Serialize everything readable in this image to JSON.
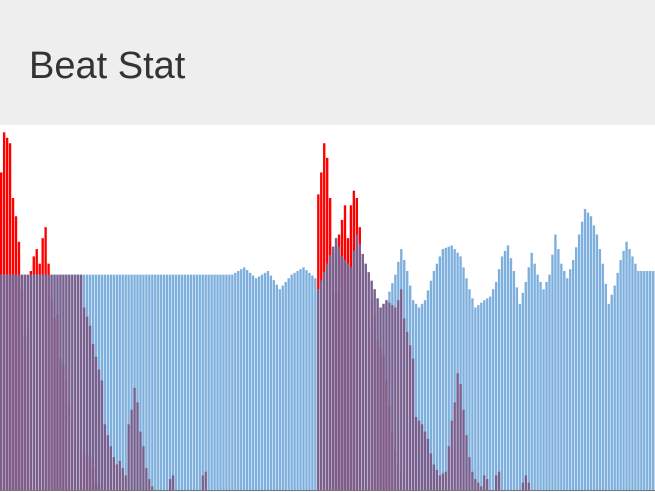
{
  "app": {
    "title": "Beat Stat"
  },
  "colors": {
    "header_background": "#eeeeee",
    "title_text": "#333333",
    "beat_series": "#ff0000",
    "stat_series": "#5b9bd5",
    "overlap": "#7a5f8c",
    "background": "#ffffff"
  },
  "chart_data": {
    "type": "bar",
    "xlabel": "",
    "ylabel": "",
    "ylim": [
      0,
      1
    ],
    "grid": false,
    "legend": "none",
    "series": [
      {
        "key": "beat",
        "color": "#ff0000",
        "opacity": 1,
        "segments": [
          {
            "start": 0,
            "points": [
              [
                0,
                0.87
              ],
              [
                1,
                0.98
              ],
              [
                3,
                0.95
              ],
              [
                4,
                0.8
              ],
              [
                5,
                0.75
              ],
              [
                6,
                0.68
              ],
              [
                8,
                0.42
              ],
              [
                9,
                0.44
              ],
              [
                10,
                0.6
              ],
              [
                11,
                0.64
              ],
              [
                12,
                0.66
              ],
              [
                13,
                0.62
              ],
              [
                14,
                0.69
              ],
              [
                15,
                0.72
              ],
              [
                16,
                0.62
              ],
              [
                17,
                0.52
              ],
              [
                18,
                0.47
              ],
              [
                19,
                0.48
              ],
              [
                20,
                0.36
              ],
              [
                21,
                0.34
              ],
              [
                22,
                0.3
              ],
              [
                23,
                0.24
              ],
              [
                24,
                0.19
              ],
              [
                25,
                0.15
              ],
              [
                27,
                0.1
              ],
              [
                28,
                0.09
              ],
              [
                29,
                0.1
              ],
              [
                30,
                0.09
              ],
              [
                31,
                0.06
              ],
              [
                32,
                0.02
              ],
              [
                33,
                0.01
              ]
            ],
            "end": 33
          },
          {
            "start": 34,
            "points": [
              [
                34,
                0
              ]
            ],
            "end": 106
          },
          {
            "start": 107,
            "points": [
              [
                107,
                0.81
              ],
              [
                108,
                0.87
              ],
              [
                109,
                0.95
              ],
              [
                110,
                0.91
              ],
              [
                111,
                0.8
              ],
              [
                112,
                0.65
              ],
              [
                113,
                0.54
              ],
              [
                114,
                0.7
              ],
              [
                115,
                0.74
              ],
              [
                116,
                0.78
              ],
              [
                117,
                0.69
              ],
              [
                118,
                0.78
              ],
              [
                119,
                0.82
              ],
              [
                120,
                0.8
              ],
              [
                121,
                0.72
              ],
              [
                122,
                0.56
              ],
              [
                123,
                0.47
              ],
              [
                124,
                0.45
              ],
              [
                125,
                0.52
              ],
              [
                126,
                0.48
              ],
              [
                127,
                0.41
              ],
              [
                128,
                0.39
              ],
              [
                129,
                0.37
              ],
              [
                130,
                0.3
              ],
              [
                131,
                0.23
              ],
              [
                132,
                0.16
              ],
              [
                133,
                0.11
              ],
              [
                134,
                0.07
              ],
              [
                135,
                0.05
              ]
            ],
            "end": 135
          },
          {
            "start": 136,
            "points": [
              [
                136,
                0
              ]
            ],
            "end": 220
          }
        ]
      },
      {
        "key": "stat",
        "color": "#5b9bd5",
        "opacity": 0.8,
        "segments": [
          {
            "start": 0,
            "points": [
              [
                0,
                0.59
              ],
              [
                33,
                0.59
              ],
              [
                40,
                0.59
              ],
              [
                50,
                0.59
              ],
              [
                60,
                0.59
              ],
              [
                70,
                0.59
              ],
              [
                78,
                0.59
              ],
              [
                82,
                0.61
              ],
              [
                86,
                0.58
              ],
              [
                90,
                0.6
              ],
              [
                94,
                0.55
              ],
              [
                98,
                0.59
              ],
              [
                102,
                0.61
              ],
              [
                106,
                0.58
              ]
            ],
            "end": 106
          },
          {
            "start": 107,
            "points": [
              [
                107,
                0.55
              ],
              [
                110,
                0.62
              ],
              [
                113,
                0.69
              ],
              [
                115,
                0.64
              ],
              [
                118,
                0.61
              ],
              [
                120,
                0.7
              ],
              [
                123,
                0.62
              ],
              [
                126,
                0.55
              ],
              [
                128,
                0.5
              ],
              [
                130,
                0.52
              ],
              [
                133,
                0.59
              ],
              [
                135,
                0.66
              ],
              [
                137,
                0.6
              ],
              [
                139,
                0.52
              ],
              [
                141,
                0.5
              ],
              [
                143,
                0.52
              ],
              [
                146,
                0.6
              ],
              [
                149,
                0.66
              ],
              [
                152,
                0.67
              ],
              [
                155,
                0.64
              ],
              [
                158,
                0.55
              ],
              [
                160,
                0.5
              ],
              [
                163,
                0.52
              ],
              [
                165,
                0.53
              ],
              [
                167,
                0.57
              ],
              [
                169,
                0.64
              ],
              [
                171,
                0.67
              ],
              [
                173,
                0.6
              ],
              [
                175,
                0.51
              ],
              [
                177,
                0.57
              ],
              [
                179,
                0.65
              ],
              [
                181,
                0.59
              ],
              [
                183,
                0.55
              ],
              [
                185,
                0.59
              ],
              [
                187,
                0.7
              ],
              [
                189,
                0.62
              ],
              [
                191,
                0.58
              ],
              [
                193,
                0.63
              ],
              [
                195,
                0.7
              ],
              [
                197,
                0.77
              ],
              [
                199,
                0.75
              ],
              [
                201,
                0.7
              ],
              [
                203,
                0.62
              ],
              [
                205,
                0.51
              ],
              [
                207,
                0.56
              ],
              [
                209,
                0.63
              ],
              [
                211,
                0.68
              ],
              [
                213,
                0.64
              ],
              [
                215,
                0.6
              ],
              [
                217,
                0.6
              ],
              [
                220,
                0.6
              ]
            ],
            "end": 220
          }
        ]
      },
      {
        "key": "low",
        "color": "#7a5f8c",
        "opacity": 1,
        "segments": [
          {
            "start": 0,
            "points": [
              [
                0,
                0.59
              ],
              [
                27,
                0.59
              ],
              [
                28,
                0.5
              ],
              [
                30,
                0.45
              ],
              [
                31,
                0.4
              ],
              [
                33,
                0.33
              ],
              [
                34,
                0.3
              ],
              [
                35,
                0.18
              ],
              [
                36,
                0.15
              ],
              [
                38,
                0.09
              ],
              [
                39,
                0.07
              ],
              [
                40,
                0.08
              ],
              [
                41,
                0.06
              ],
              [
                42,
                0.04
              ],
              [
                43,
                0.18
              ],
              [
                44,
                0.22
              ],
              [
                45,
                0.28
              ],
              [
                46,
                0.24
              ],
              [
                47,
                0.16
              ],
              [
                48,
                0.12
              ],
              [
                49,
                0.06
              ],
              [
                50,
                0.03
              ],
              [
                51,
                0.01
              ],
              [
                52,
                0
              ],
              [
                56,
                0
              ],
              [
                57,
                0.03
              ],
              [
                58,
                0.04
              ],
              [
                59,
                0
              ],
              [
                67,
                0
              ],
              [
                68,
                0.04
              ],
              [
                69,
                0.05
              ],
              [
                70,
                0
              ],
              [
                106,
                0
              ]
            ],
            "end": 106
          },
          {
            "start": 107,
            "points": [
              [
                107,
                0.55
              ],
              [
                110,
                0.62
              ],
              [
                113,
                0.69
              ],
              [
                115,
                0.64
              ],
              [
                118,
                0.61
              ],
              [
                120,
                0.7
              ],
              [
                123,
                0.62
              ],
              [
                126,
                0.55
              ],
              [
                128,
                0.5
              ],
              [
                130,
                0.52
              ],
              [
                133,
                0.5
              ],
              [
                134,
                0.52
              ],
              [
                135,
                0.55
              ],
              [
                136,
                0.47
              ],
              [
                139,
                0.36
              ],
              [
                140,
                0.2
              ],
              [
                142,
                0.18
              ],
              [
                144,
                0.14
              ],
              [
                145,
                0.1
              ],
              [
                146,
                0.07
              ],
              [
                148,
                0.04
              ],
              [
                150,
                0.05
              ],
              [
                151,
                0.12
              ],
              [
                152,
                0.19
              ],
              [
                153,
                0.24
              ],
              [
                154,
                0.32
              ],
              [
                155,
                0.29
              ],
              [
                156,
                0.22
              ],
              [
                157,
                0.15
              ],
              [
                158,
                0.09
              ],
              [
                159,
                0.05
              ],
              [
                160,
                0.03
              ],
              [
                161,
                0.02
              ],
              [
                162,
                0.01
              ],
              [
                163,
                0.04
              ],
              [
                164,
                0.03
              ],
              [
                165,
                0
              ],
              [
                166,
                0
              ],
              [
                167,
                0.04
              ],
              [
                168,
                0.05
              ],
              [
                169,
                0
              ],
              [
                175,
                0
              ],
              [
                176,
                0.02
              ],
              [
                177,
                0.04
              ],
              [
                178,
                0.02
              ],
              [
                179,
                0
              ],
              [
                220,
                0
              ]
            ],
            "end": 220
          }
        ]
      }
    ]
  }
}
